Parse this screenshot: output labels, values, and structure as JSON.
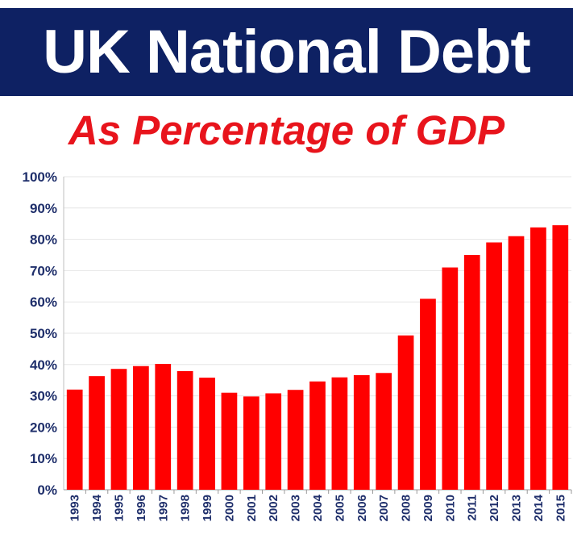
{
  "colors": {
    "banner": "#0e2163",
    "bar": "#ff0000",
    "subtitle": "#e8141c",
    "tick": "#1f2f6b"
  },
  "chart_data": {
    "type": "bar",
    "title": "UK National Debt",
    "subtitle": "As Percentage of GDP",
    "categories": [
      "1993",
      "1994",
      "1995",
      "1996",
      "1997",
      "1998",
      "1999",
      "2000",
      "2001",
      "2002",
      "2003",
      "2004",
      "2005",
      "2006",
      "2007",
      "2008",
      "2009",
      "2010",
      "2011",
      "2012",
      "2013",
      "2014",
      "2015"
    ],
    "values": [
      32,
      36.3,
      38.6,
      39.5,
      40.2,
      37.9,
      35.8,
      31,
      29.8,
      30.8,
      31.9,
      34.6,
      35.9,
      36.6,
      37.3,
      49.3,
      61,
      71,
      75,
      79,
      81,
      83.8,
      84.5
    ],
    "ylim": [
      0,
      100
    ],
    "yticks": [
      0,
      10,
      20,
      30,
      40,
      50,
      60,
      70,
      80,
      90,
      100
    ],
    "ytick_labels": [
      "0%",
      "10%",
      "20%",
      "30%",
      "40%",
      "50%",
      "60%",
      "70%",
      "80%",
      "90%",
      "100%"
    ],
    "grid": true,
    "legend": "none",
    "xlabel": "",
    "ylabel": ""
  }
}
